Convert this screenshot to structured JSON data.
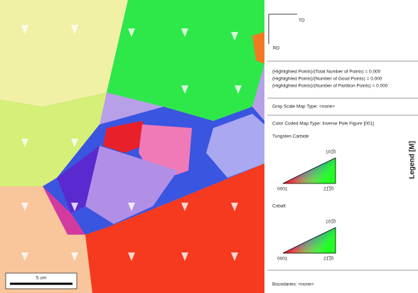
{
  "map": {
    "scale_bar": "5 um"
  },
  "legend": {
    "axes": {
      "x": "TD",
      "y": "RD"
    },
    "fractions": [
      "(Highlighted Points)/(Total Number of Points) = 0.000",
      "(Highlighted Points)/(Number of Good Points) = 0.000",
      "(Highlighted Points)/(Number of Partition Points) = 0.000"
    ],
    "gray_scale": "Gray Scale Map Type: <none>",
    "color_coded": "Color Coded Map Type: Inverse Pole Figure [001]",
    "phases": [
      {
        "name": "Tungsten Carbide",
        "top": "101̅0",
        "left": "0001",
        "right": "21̅1̅0"
      },
      {
        "name": "Cobalt",
        "top": "101̅0",
        "left": "0001",
        "right": "21̅1̅0"
      }
    ],
    "boundaries": "Boundaries: <none>",
    "side_label": "Legend [M]"
  }
}
